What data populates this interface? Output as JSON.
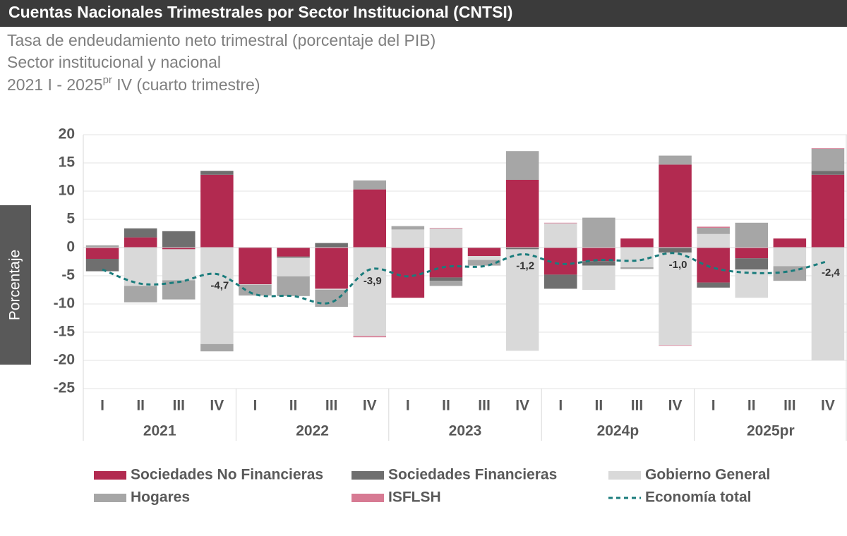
{
  "chart_data": {
    "type": "bar",
    "title": "Cuentas Nacionales Trimestrales por Sector Institucional (CNTSI)",
    "subtitle": [
      "Tasa de endeudamiento neto trimestral (porcentaje del PIB)",
      "Sector institucional y nacional"
    ],
    "period": [
      "2021 I - 2025",
      "pr",
      " IV (cuarto trimestre)"
    ],
    "y_label": "Porcentaje",
    "categories": [
      "I",
      "II",
      "III",
      "IV",
      "I",
      "II",
      "III",
      "IV",
      "I",
      "II",
      "III",
      "IV",
      "I",
      "II",
      "III",
      "IV",
      "I",
      "II",
      "III",
      "IV"
    ],
    "group_labels": [
      "2021",
      "2022",
      "2023",
      "2024p",
      "2025pr"
    ],
    "ylim": [
      -25,
      20
    ],
    "yticks": [
      -25,
      -20,
      -15,
      -10,
      -5,
      0,
      5,
      10,
      15,
      20
    ],
    "grid": true,
    "stacked": true,
    "series": [
      {
        "name": "Sociedades No Financieras",
        "color": "#b22a50",
        "values": [
          -2.0,
          1.8,
          -0.3,
          12.9,
          -6.5,
          -1.6,
          -7.3,
          10.3,
          -8.9,
          -5.3,
          -1.5,
          12.0,
          -4.8,
          -2.4,
          1.6,
          14.7,
          -6.2,
          -1.9,
          1.6,
          12.9
        ]
      },
      {
        "name": "Sociedades Financieras",
        "color": "#6f6f6f",
        "values": [
          -2.2,
          1.6,
          2.9,
          0.7,
          0.0,
          -0.2,
          0.8,
          0.0,
          0.0,
          -0.6,
          0.0,
          -0.3,
          -2.5,
          -0.8,
          0.0,
          -0.9,
          -0.9,
          -2.0,
          0.0,
          0.7
        ]
      },
      {
        "name": "Gobierno General",
        "color": "#d9d9d9",
        "values": [
          0.0,
          -6.8,
          -5.5,
          -17.1,
          -0.1,
          -3.3,
          -0.2,
          -15.7,
          3.2,
          3.4,
          -0.7,
          -18.0,
          4.3,
          -4.3,
          -3.5,
          -16.4,
          2.4,
          -5.0,
          -3.3,
          -20.0
        ]
      },
      {
        "name": "Hogares",
        "color": "#a6a6a6",
        "values": [
          0.4,
          -2.9,
          -3.4,
          -1.3,
          -1.9,
          -3.5,
          -3.0,
          1.6,
          0.6,
          -0.9,
          -1.0,
          5.1,
          0.0,
          5.3,
          -0.3,
          1.6,
          1.1,
          4.4,
          -2.6,
          3.9
        ]
      },
      {
        "name": "ISFLSH",
        "color": "#d77a93",
        "values": [
          0.0,
          0.0,
          0.0,
          0.0,
          0.1,
          0.0,
          0.0,
          -0.2,
          0.0,
          0.1,
          0.0,
          0.0,
          0.1,
          0.0,
          0.0,
          -0.1,
          0.2,
          0.0,
          0.0,
          0.1
        ]
      }
    ],
    "line": {
      "name": "Economía total",
      "color": "#1a7c7c",
      "values": [
        -3.9,
        -6.4,
        -6.1,
        -4.7,
        -8.3,
        -8.6,
        -9.7,
        -3.9,
        -5.1,
        -3.4,
        -3.3,
        -1.2,
        -2.9,
        -2.2,
        -2.3,
        -1.0,
        -3.6,
        -4.5,
        -4.2,
        -2.4
      ],
      "value_labels": [
        null,
        null,
        null,
        "-4,7",
        null,
        null,
        null,
        "-3,9",
        null,
        null,
        null,
        "-1,2",
        null,
        null,
        null,
        "-1,0",
        null,
        null,
        null,
        "-2,4"
      ]
    }
  }
}
